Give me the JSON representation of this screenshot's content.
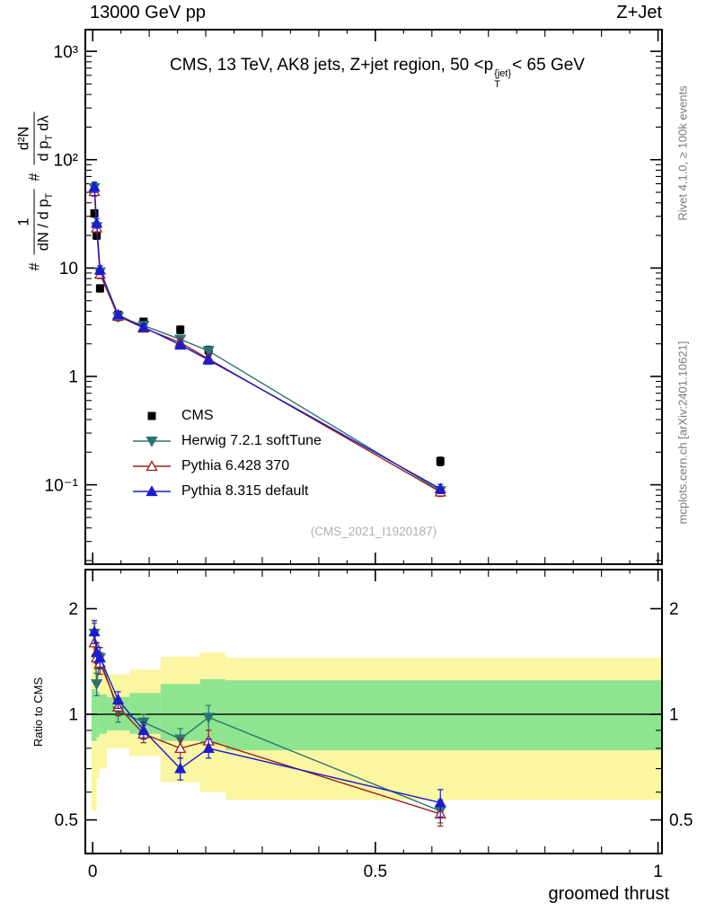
{
  "header": {
    "left": "13000 GeV pp",
    "right": "Z+Jet"
  },
  "title": {
    "pre": "CMS, 13 TeV, AK8 jets, Z+jet region, 50 <p",
    "sub": "T",
    "sup": "{jet}",
    "post": "< 65 GeV"
  },
  "ylabel": {
    "hash1": "#",
    "num1": "1",
    "den1a": "dN / d p",
    "den1sub": "T",
    "hash2": "#",
    "num2": "d²N",
    "den2a": "d p",
    "den2sub": "T",
    "den2b": "dλ"
  },
  "ratio_ylabel": "Ratio to CMS",
  "watermark": "(CMS_2021_I1920187)",
  "side_notes": {
    "top": "Rivet 4.1.0, ≥ 100k events",
    "bottom": "mcplots.cern.ch [arXiv:2401.10621]"
  },
  "chart_data": {
    "type": "line",
    "x": {
      "label": "groomed thrust",
      "lim": [
        -0.013,
        1.007
      ],
      "ticks": [
        {
          "value": 0,
          "label": "0"
        },
        {
          "value": 0.5,
          "label": "0.5"
        },
        {
          "value": 1,
          "label": "1"
        }
      ]
    },
    "x_points": [
      0.003,
      0.007,
      0.013,
      0.045,
      0.09,
      0.155,
      0.205,
      0.615
    ],
    "main_panel": {
      "ylog": true,
      "ylim": [
        0.0185,
        1585
      ],
      "yticks": [
        {
          "value": 1000,
          "label": "10³"
        },
        {
          "value": 100,
          "label": "10²"
        },
        {
          "value": 10,
          "label": "10"
        },
        {
          "value": 1,
          "label": "1"
        },
        {
          "value": 0.1,
          "label": "10⁻¹"
        }
      ],
      "series": [
        {
          "name": "CMS",
          "color": "#000000",
          "marker": "square",
          "filled": true,
          "line": false,
          "y": [
            32,
            20,
            6.5,
            3.7,
            3.2,
            2.7,
            1.75,
            0.165
          ],
          "yerr": [
            2.5,
            1.6,
            0.5,
            0.3,
            0.25,
            0.22,
            0.15,
            0.015
          ]
        },
        {
          "name": "Herwig 7.2.1 softTune",
          "color": "#2d7373",
          "marker": "triangle-down",
          "filled": true,
          "line": true,
          "y": [
            55,
            24,
            9.2,
            3.55,
            2.95,
            2.2,
            1.72,
            0.088
          ],
          "yerr": [
            6,
            2.5,
            0.9,
            0.3,
            0.22,
            0.18,
            0.14,
            0.008
          ]
        },
        {
          "name": "Pythia 6.428 370",
          "color": "#9a2020",
          "marker": "triangle-up",
          "filled": false,
          "line": true,
          "y": [
            51,
            23.5,
            8.8,
            3.6,
            2.8,
            2.05,
            1.45,
            0.086
          ],
          "yerr": [
            5,
            2.2,
            0.8,
            0.28,
            0.2,
            0.16,
            0.12,
            0.008
          ]
        },
        {
          "name": "Pythia 8.315 default",
          "color": "#1c1ccc",
          "marker": "triangle-up",
          "filled": true,
          "line": true,
          "y": [
            56,
            26,
            9.6,
            3.7,
            2.85,
            1.95,
            1.42,
            0.092
          ],
          "yerr": [
            6,
            2.6,
            0.9,
            0.3,
            0.2,
            0.15,
            0.12,
            0.009
          ]
        }
      ]
    },
    "ratio_panel": {
      "ylog": true,
      "ylim": [
        0.401,
        2.585
      ],
      "yticks": [
        {
          "value": 2,
          "label": "2"
        },
        {
          "value": 1,
          "label": "1"
        },
        {
          "value": 0.5,
          "label": "0.5"
        }
      ],
      "minor_ticks": [
        0.6,
        0.7,
        0.8,
        0.9
      ],
      "ref_line": 1,
      "band_colors": {
        "yellow": "#fbf6a2",
        "green": "#8fe48f"
      },
      "bands": [
        {
          "x0": -0.002,
          "x1": 0.007,
          "yellow": [
            0.53,
            1.88
          ],
          "green": [
            0.84,
            1.18
          ]
        },
        {
          "x0": 0.007,
          "x1": 0.012,
          "yellow": [
            0.66,
            1.6
          ],
          "green": [
            0.86,
            1.16
          ]
        },
        {
          "x0": 0.012,
          "x1": 0.025,
          "yellow": [
            0.7,
            1.38
          ],
          "green": [
            0.88,
            1.14
          ]
        },
        {
          "x0": 0.025,
          "x1": 0.065,
          "yellow": [
            0.8,
            1.3
          ],
          "green": [
            0.9,
            1.12
          ]
        },
        {
          "x0": 0.065,
          "x1": 0.12,
          "yellow": [
            0.76,
            1.34
          ],
          "green": [
            0.88,
            1.15
          ]
        },
        {
          "x0": 0.12,
          "x1": 0.19,
          "yellow": [
            0.64,
            1.46
          ],
          "green": [
            0.84,
            1.22
          ]
        },
        {
          "x0": 0.19,
          "x1": 0.235,
          "yellow": [
            0.6,
            1.5
          ],
          "green": [
            0.82,
            1.26
          ]
        },
        {
          "x0": 0.235,
          "x1": 1.007,
          "yellow": [
            0.57,
            1.45
          ],
          "green": [
            0.79,
            1.25
          ]
        }
      ],
      "series": [
        {
          "name": "Herwig 7.2.1 softTune",
          "color": "#2d7373",
          "marker": "triangle-down",
          "filled": true,
          "line": true,
          "y": [
            1.7,
            1.22,
            1.45,
            1.02,
            0.95,
            0.85,
            0.98,
            0.53
          ],
          "yerr": [
            0.12,
            0.09,
            0.1,
            0.07,
            0.05,
            0.06,
            0.08,
            0.04
          ]
        },
        {
          "name": "Pythia 6.428 370",
          "color": "#9a2020",
          "marker": "triangle-up",
          "filled": false,
          "line": true,
          "y": [
            1.6,
            1.45,
            1.4,
            1.05,
            0.88,
            0.8,
            0.84,
            0.52
          ],
          "yerr": [
            0.12,
            0.1,
            0.1,
            0.06,
            0.05,
            0.05,
            0.06,
            0.04
          ]
        },
        {
          "name": "Pythia 8.315 default",
          "color": "#1c1ccc",
          "marker": "triangle-up",
          "filled": true,
          "line": true,
          "y": [
            1.72,
            1.5,
            1.45,
            1.1,
            0.9,
            0.7,
            0.8,
            0.56
          ],
          "yerr": [
            0.13,
            0.1,
            0.1,
            0.06,
            0.05,
            0.05,
            0.05,
            0.05
          ]
        }
      ]
    }
  }
}
